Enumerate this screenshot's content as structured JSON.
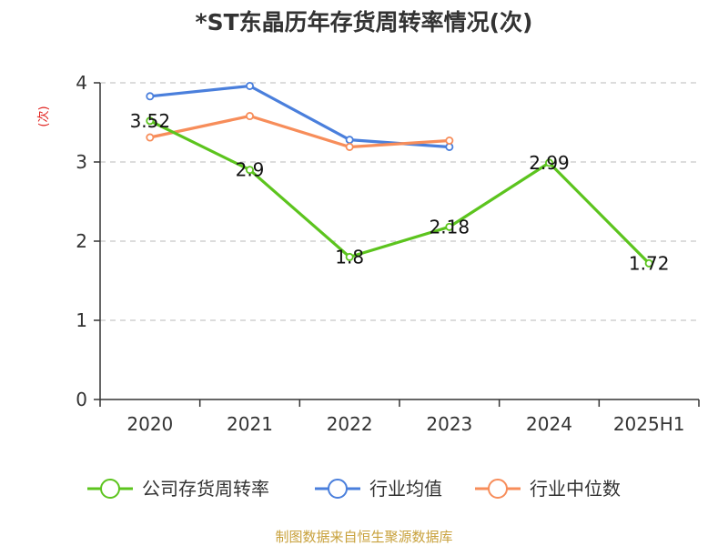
{
  "chart_data": {
    "type": "line",
    "title": "*ST东晶历年存货周转率情况(次)",
    "ylabel": "(次)",
    "xlabel": "",
    "categories": [
      "2020",
      "2021",
      "2022",
      "2023",
      "2024",
      "2025H1"
    ],
    "ylim": [
      0,
      4
    ],
    "yticks": [
      0,
      1,
      2,
      3,
      4
    ],
    "grid": true,
    "legend_position": "bottom",
    "series": [
      {
        "name": "公司存货周转率",
        "color": "#5cc41e",
        "values": [
          3.52,
          2.9,
          1.8,
          2.18,
          2.99,
          1.72
        ],
        "labels": [
          "3.52",
          "2.9",
          "1.8",
          "2.18",
          "2.99",
          "1.72"
        ],
        "show_labels": true
      },
      {
        "name": "行业均值",
        "color": "#4a7fdc",
        "values": [
          3.83,
          3.96,
          3.28,
          3.19,
          null,
          null
        ],
        "show_labels": false
      },
      {
        "name": "行业中位数",
        "color": "#f78d5a",
        "values": [
          3.31,
          3.58,
          3.19,
          3.27,
          null,
          null
        ],
        "show_labels": false
      }
    ]
  },
  "source": "制图数据来自恒生聚源数据库"
}
